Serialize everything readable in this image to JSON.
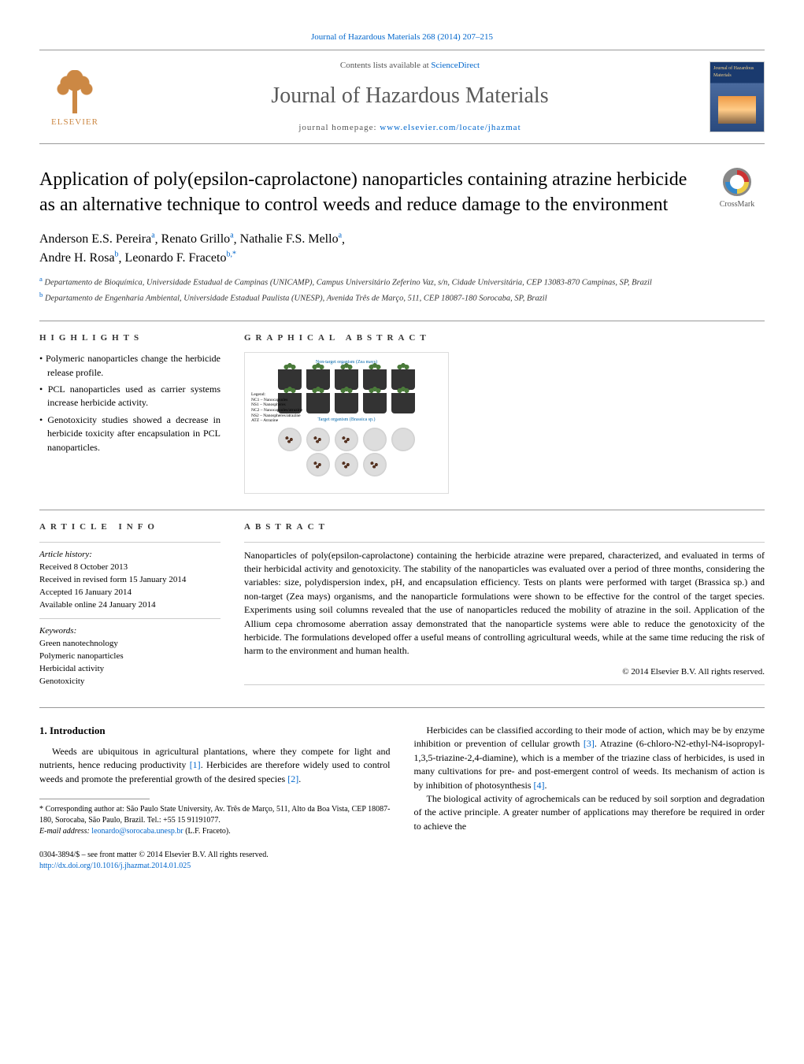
{
  "header": {
    "citation": "Journal of Hazardous Materials 268 (2014) 207–215",
    "contents_prefix": "Contents lists available at ",
    "contents_link": "ScienceDirect",
    "journal_name": "Journal of Hazardous Materials",
    "homepage_prefix": "journal homepage: ",
    "homepage_url": "www.elsevier.com/locate/jhazmat",
    "publisher": "ELSEVIER",
    "cover_label": "Journal of Hazardous Materials"
  },
  "crossmark": {
    "label": "CrossMark"
  },
  "title": "Application of poly(epsilon-caprolactone) nanoparticles containing atrazine herbicide as an alternative technique to control weeds and reduce damage to the environment",
  "authors": [
    {
      "name": "Anderson E.S. Pereira",
      "aff": "a"
    },
    {
      "name": "Renato Grillo",
      "aff": "a"
    },
    {
      "name": "Nathalie F.S. Mello",
      "aff": "a"
    },
    {
      "name": "Andre H. Rosa",
      "aff": "b"
    },
    {
      "name": "Leonardo F. Fraceto",
      "aff": "b,*"
    }
  ],
  "affiliations": [
    {
      "key": "a",
      "text": "Departamento de Bioquímica, Universidade Estadual de Campinas (UNICAMP), Campus Universitário Zeferino Vaz, s/n, Cidade Universitária, CEP 13083-870 Campinas, SP, Brazil"
    },
    {
      "key": "b",
      "text": "Departamento de Engenharia Ambiental, Universidade Estadual Paulista (UNESP), Avenida Três de Março, 511, CEP 18087-180 Sorocaba, SP, Brazil"
    }
  ],
  "highlights": {
    "label": "HIGHLIGHTS",
    "items": [
      "Polymeric nanoparticles change the herbicide release profile.",
      "PCL nanoparticles used as carrier systems increase herbicide activity.",
      "Genotoxicity studies showed a decrease in herbicide toxicity after encapsulation in PCL nanoparticles."
    ]
  },
  "graphical_abstract": {
    "label": "GRAPHICAL ABSTRACT",
    "top_caption": "Non-target organism (Zea mays)",
    "mid_caption": "Target organism (Brassica sp.)",
    "legend_title": "Legend:",
    "legend_items": [
      "NC1 – Nanocapsules",
      "NS1 – Nanospheres",
      "NC2 – Nanocapsules/atrazine",
      "NS2 – Nanospheres/atrazine",
      "ATZ – Atrazine"
    ],
    "pot_labels": [
      "NC1",
      "NS1",
      "NC2",
      "NS2",
      "ATZ"
    ]
  },
  "article_info": {
    "label": "ARTICLE INFO",
    "history_label": "Article history:",
    "history": [
      "Received 8 October 2013",
      "Received in revised form 15 January 2014",
      "Accepted 16 January 2014",
      "Available online 24 January 2014"
    ],
    "keywords_label": "Keywords:",
    "keywords": [
      "Green nanotechnology",
      "Polymeric nanoparticles",
      "Herbicidal activity",
      "Genotoxicity"
    ]
  },
  "abstract": {
    "label": "ABSTRACT",
    "text": "Nanoparticles of poly(epsilon-caprolactone) containing the herbicide atrazine were prepared, characterized, and evaluated in terms of their herbicidal activity and genotoxicity. The stability of the nanoparticles was evaluated over a period of three months, considering the variables: size, polydispersion index, pH, and encapsulation efficiency. Tests on plants were performed with target (Brassica sp.) and non-target (Zea mays) organisms, and the nanoparticle formulations were shown to be effective for the control of the target species. Experiments using soil columns revealed that the use of nanoparticles reduced the mobility of atrazine in the soil. Application of the Allium cepa chromosome aberration assay demonstrated that the nanoparticle systems were able to reduce the genotoxicity of the herbicide. The formulations developed offer a useful means of controlling agricultural weeds, while at the same time reducing the risk of harm to the environment and human health.",
    "copyright": "© 2014 Elsevier B.V. All rights reserved."
  },
  "body": {
    "section1_heading": "1. Introduction",
    "left_paragraphs": [
      "Weeds are ubiquitous in agricultural plantations, where they compete for light and nutrients, hence reducing productivity [1]. Herbicides are therefore widely used to control weeds and promote the preferential growth of the desired species [2]."
    ],
    "right_paragraphs": [
      "Herbicides can be classified according to their mode of action, which may be by enzyme inhibition or prevention of cellular growth [3]. Atrazine (6-chloro-N2-ethyl-N4-isopropyl-1,3,5-triazine-2,4-diamine), which is a member of the triazine class of herbicides, is used in many cultivations for pre- and post-emergent control of weeds. Its mechanism of action is by inhibition of photosynthesis [4].",
      "The biological activity of agrochemicals can be reduced by soil sorption and degradation of the active principle. A greater number of applications may therefore be required in order to achieve the"
    ],
    "refs": [
      "[1]",
      "[2]",
      "[3]",
      "[4]"
    ]
  },
  "footnote": {
    "marker": "*",
    "text": "Corresponding author at: São Paulo State University, Av. Três de Março, 511, Alto da Boa Vista, CEP 18087-180, Sorocaba, São Paulo, Brazil. Tel.: +55 15 91191077.",
    "email_label": "E-mail address: ",
    "email": "leonardo@sorocaba.unesp.br",
    "email_suffix": " (L.F. Fraceto)."
  },
  "footer": {
    "issn_line": "0304-3894/$ – see front matter © 2014 Elsevier B.V. All rights reserved.",
    "doi": "http://dx.doi.org/10.1016/j.jhazmat.2014.01.025"
  },
  "colors": {
    "link": "#0066cc",
    "text": "#000000",
    "muted": "#555555",
    "rule": "#999999",
    "elsevier": "#cc8844"
  },
  "typography": {
    "body_fontsize": 12,
    "title_fontsize": 24,
    "journal_fontsize": 28,
    "section_label_letterspacing": 6
  }
}
